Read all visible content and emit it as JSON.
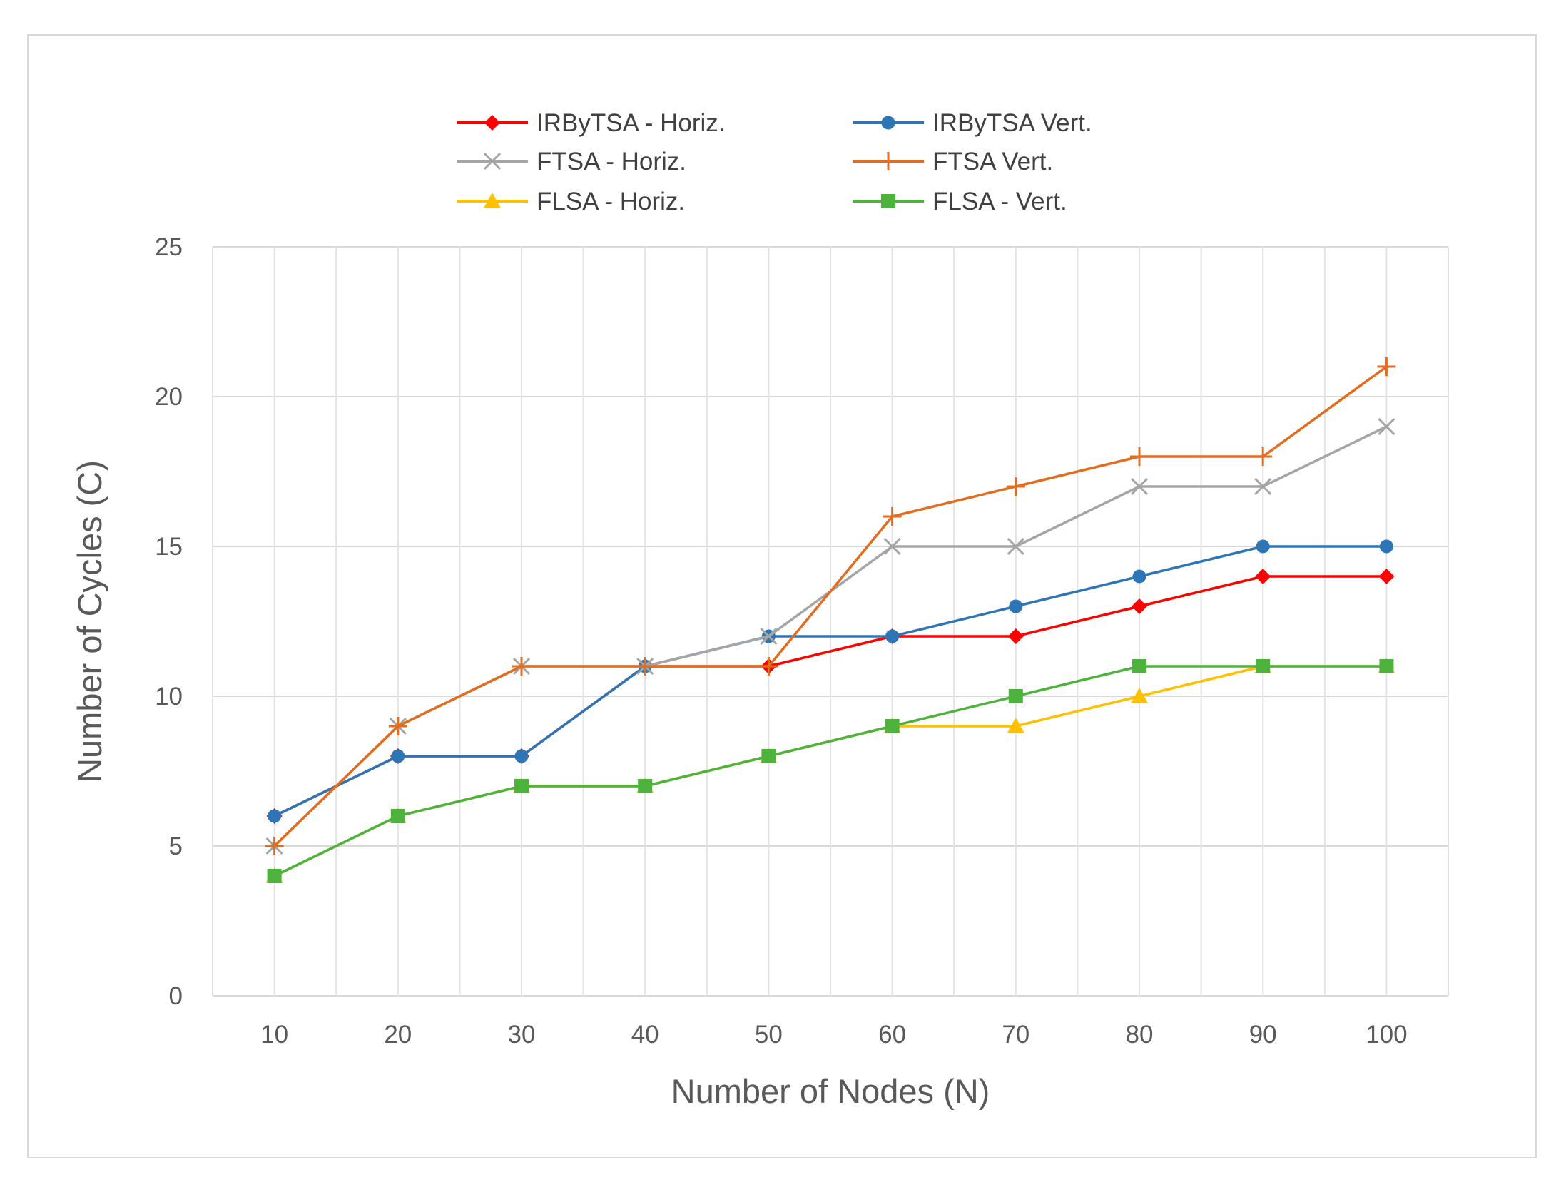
{
  "chart_data": {
    "type": "line",
    "title": "",
    "xlabel": "Number of Nodes (N)",
    "ylabel": "Number of Cycles (C)",
    "x": [
      10,
      20,
      30,
      40,
      50,
      60,
      70,
      80,
      90,
      100
    ],
    "x_tick_labels": [
      "10",
      "20",
      "30",
      "40",
      "50",
      "60",
      "70",
      "80",
      "90",
      "100"
    ],
    "ylim": [
      0,
      25
    ],
    "y_ticks": [
      0,
      5,
      10,
      15,
      20,
      25
    ],
    "y_tick_labels": [
      "0",
      "5",
      "10",
      "15",
      "20",
      "25"
    ],
    "grid": true,
    "legend_position": "top",
    "series": [
      {
        "name": "IRByTSA - Horiz.",
        "color": "#ff0000",
        "marker": "diamond",
        "values": [
          6,
          8,
          8,
          11,
          11,
          12,
          12,
          13,
          14,
          14
        ]
      },
      {
        "name": "IRByTSA Vert.",
        "color": "#2e75b6",
        "marker": "circle",
        "values": [
          6,
          8,
          8,
          11,
          12,
          12,
          13,
          14,
          15,
          15
        ]
      },
      {
        "name": "FTSA - Horiz.",
        "color": "#a5a5a5",
        "marker": "x",
        "values": [
          5,
          9,
          11,
          11,
          12,
          15,
          15,
          17,
          17,
          19
        ]
      },
      {
        "name": "FTSA Vert.",
        "color": "#e36c1e",
        "marker": "plus",
        "values": [
          5,
          9,
          11,
          11,
          11,
          16,
          17,
          18,
          18,
          21
        ]
      },
      {
        "name": "FLSA - Horiz.",
        "color": "#ffc000",
        "marker": "triangle",
        "values": [
          4,
          6,
          7,
          7,
          8,
          9,
          9,
          10,
          11,
          11
        ]
      },
      {
        "name": "FLSA - Vert.",
        "color": "#4db33d",
        "marker": "square",
        "values": [
          4,
          6,
          7,
          7,
          8,
          9,
          10,
          11,
          11,
          11
        ]
      }
    ]
  }
}
